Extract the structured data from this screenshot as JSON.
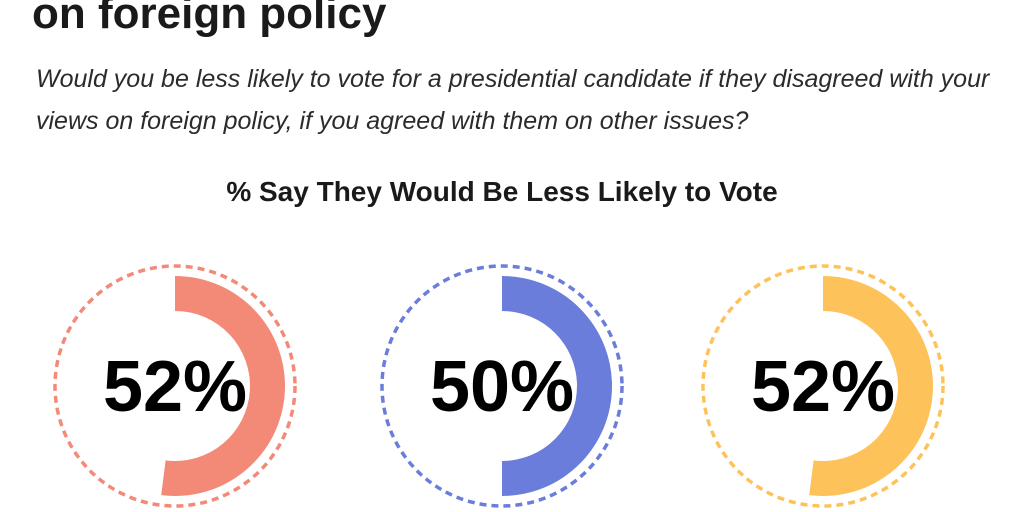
{
  "header": {
    "headline": "on foreign policy",
    "question": "Would you be less likely to vote for a presidential candidate if they disagreed with your views on foreign policy, if you agreed with them on other issues?"
  },
  "chart_data": {
    "type": "pie",
    "title": "% Say They Would Be Less Likely to Vote",
    "xlabel": "",
    "ylabel": "",
    "unit": "%",
    "items": [
      {
        "value": 52,
        "label": "52%",
        "color": "#f38a78"
      },
      {
        "value": 50,
        "label": "50%",
        "color": "#6b7ddb"
      },
      {
        "value": 52,
        "label": "52%",
        "color": "#fdc35a"
      }
    ]
  }
}
